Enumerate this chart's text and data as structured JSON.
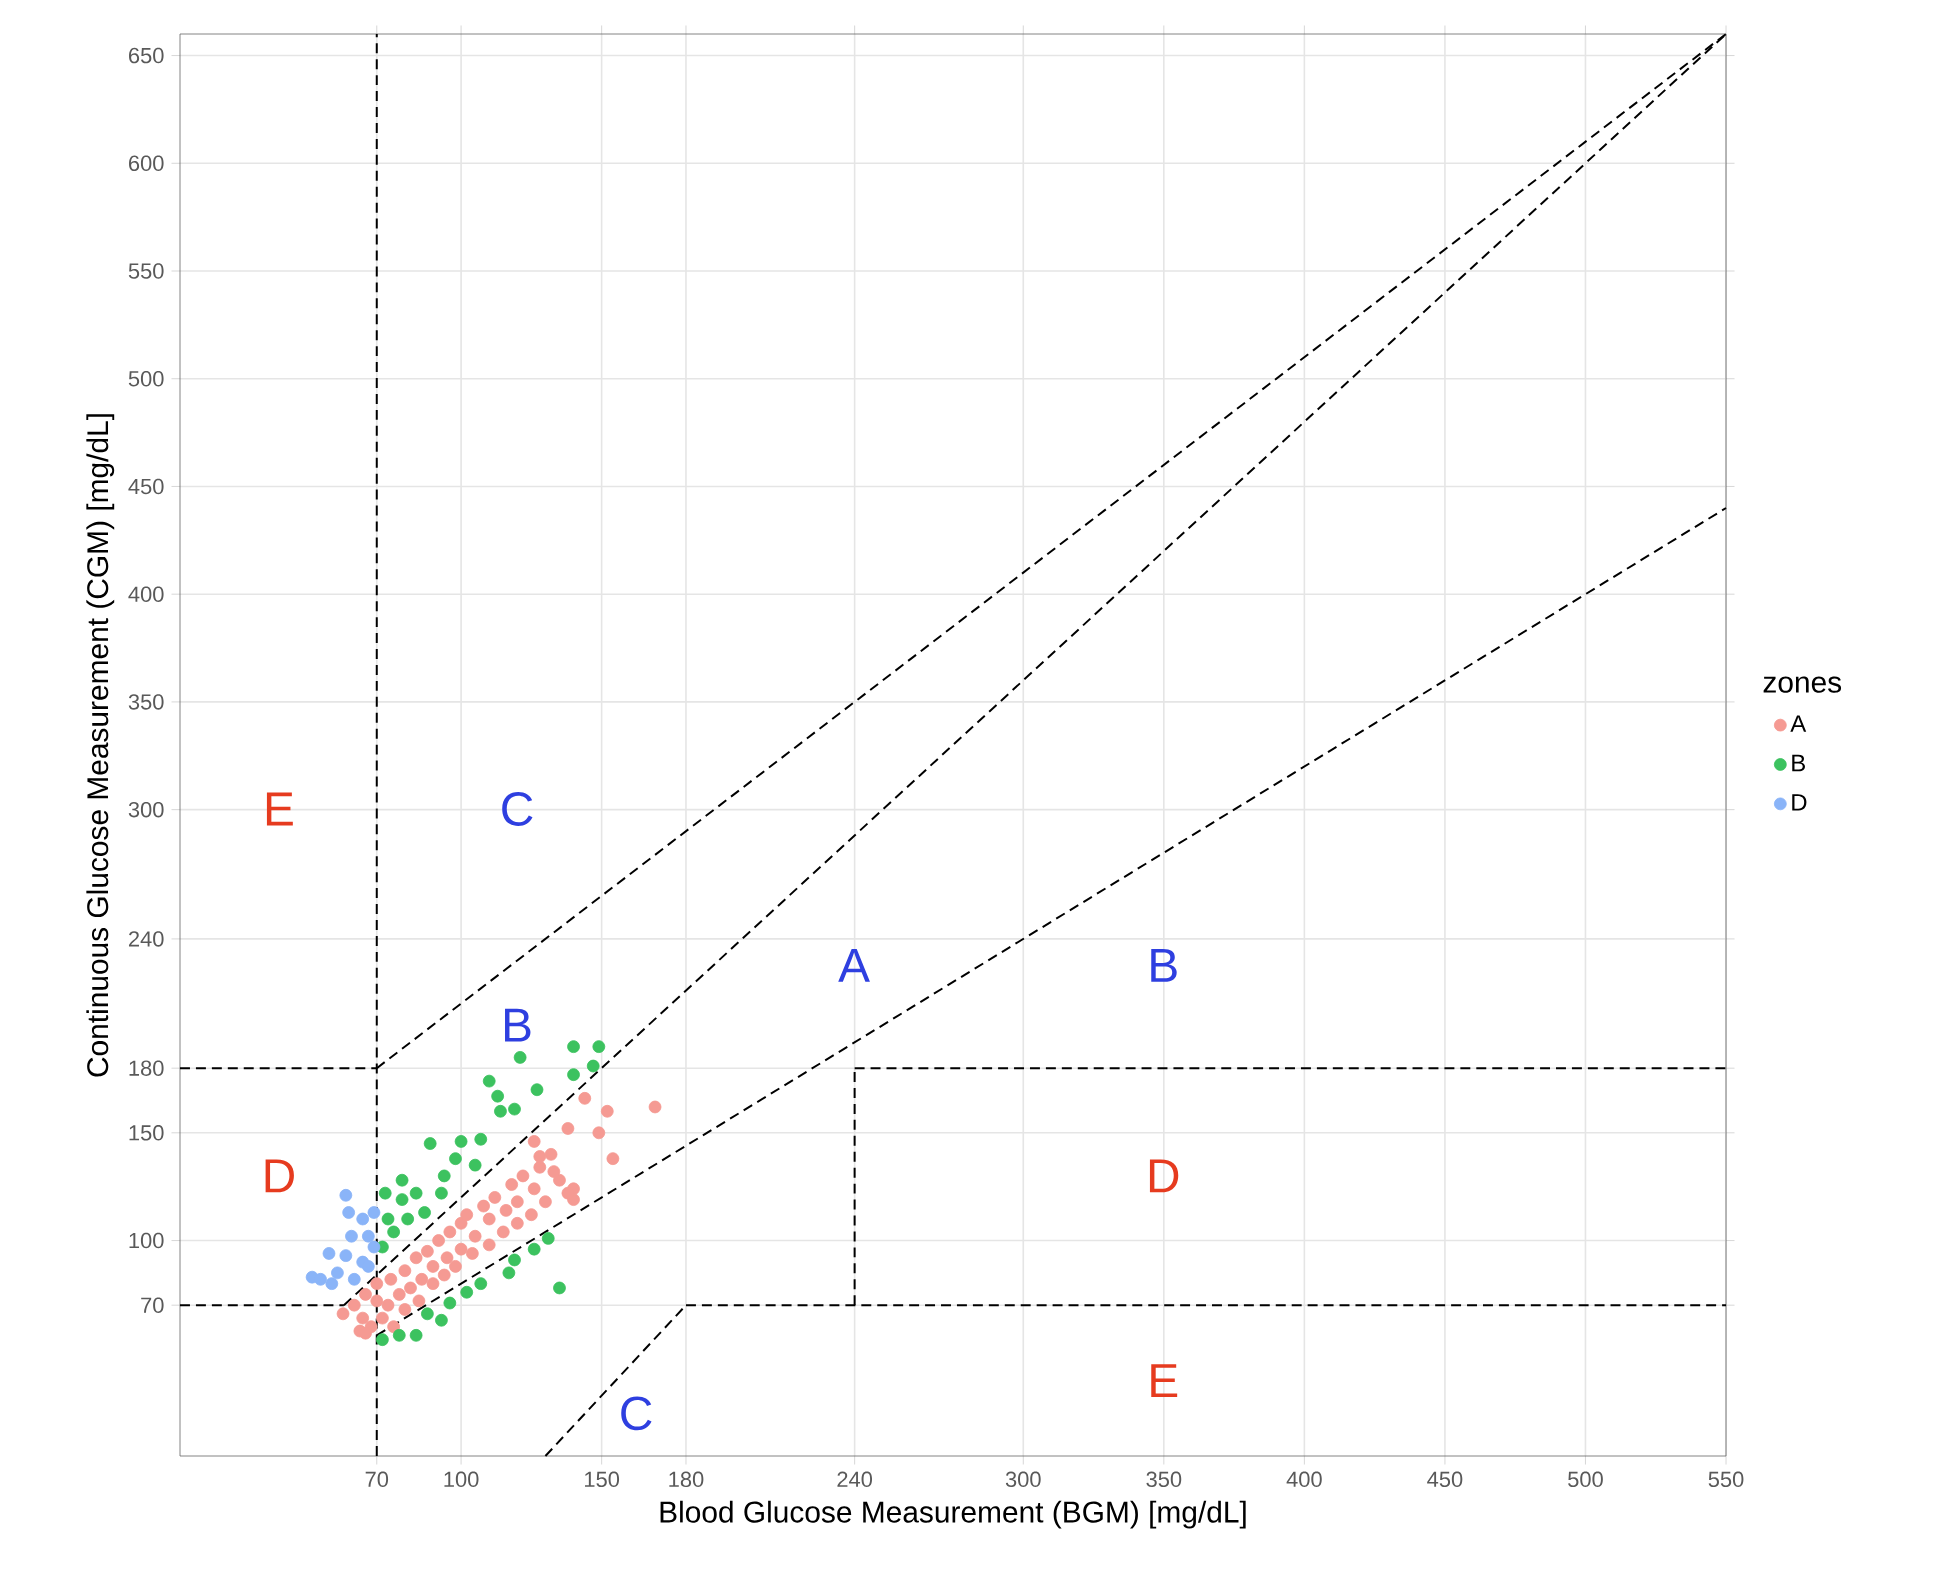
{
  "chart_data": {
    "type": "scatter",
    "xlabel": "Blood Glucose Measurement (BGM) [mg/dL]",
    "ylabel": "Continuous Glucose Measurement (CGM) [mg/dL]",
    "legend_title": "zones",
    "legend": "right",
    "grid": true,
    "xlim": [
      0,
      550
    ],
    "ylim": [
      0,
      660
    ],
    "xticks": [
      70,
      100,
      150,
      180,
      240,
      300,
      350,
      400,
      450,
      500,
      550
    ],
    "yticks": [
      70,
      100,
      150,
      180,
      240,
      300,
      350,
      400,
      450,
      500,
      550,
      600,
      650
    ],
    "annotations": [
      "E",
      "C",
      "B",
      "A",
      "B",
      "D",
      "D",
      "E",
      "C"
    ],
    "series": [
      {
        "name": "A",
        "color": "#f59a93",
        "marker": "circle",
        "x": [
          58,
          62,
          65,
          66,
          68,
          70,
          70,
          72,
          74,
          75,
          76,
          78,
          80,
          80,
          82,
          84,
          85,
          86,
          88,
          90,
          90,
          92,
          94,
          95,
          96,
          98,
          100,
          100,
          102,
          104,
          105,
          108,
          110,
          110,
          112,
          115,
          116,
          118,
          120,
          120,
          122,
          125,
          126,
          128,
          130,
          132,
          135,
          140,
          64,
          66,
          144,
          152,
          169,
          138,
          149,
          154,
          140,
          133,
          126,
          128,
          138
        ],
        "values": [
          66,
          70,
          64,
          75,
          60,
          72,
          80,
          64,
          70,
          82,
          60,
          75,
          86,
          68,
          78,
          92,
          72,
          82,
          95,
          80,
          88,
          100,
          84,
          92,
          104,
          88,
          96,
          108,
          112,
          94,
          102,
          116,
          98,
          110,
          120,
          104,
          114,
          126,
          108,
          118,
          130,
          112,
          124,
          134,
          118,
          140,
          128,
          124,
          58,
          57,
          166,
          160,
          162,
          152,
          150,
          138,
          119,
          132,
          146,
          139,
          122
        ]
      },
      {
        "name": "B",
        "color": "#3cc25f",
        "marker": "circle",
        "x": [
          140,
          149,
          121,
          110,
          127,
          140,
          147,
          113,
          119,
          107,
          89,
          100,
          94,
          84,
          79,
          74,
          76,
          73,
          87,
          81,
          72,
          98,
          105,
          114,
          131,
          126,
          119,
          117,
          107,
          135,
          102,
          96,
          93,
          84,
          78,
          72,
          88,
          79,
          93
        ],
        "values": [
          190,
          190,
          185,
          174,
          170,
          177,
          181,
          167,
          161,
          147,
          145,
          146,
          130,
          122,
          119,
          110,
          104,
          122,
          113,
          110,
          97,
          138,
          135,
          160,
          101,
          96,
          91,
          85,
          80,
          78,
          76,
          71,
          63,
          56,
          56,
          54,
          66,
          128,
          122
        ]
      },
      {
        "name": "D",
        "color": "#8ab4f8",
        "marker": "circle",
        "x": [
          59,
          60,
          65,
          69,
          61,
          67,
          59,
          53,
          65,
          47,
          50,
          56,
          62,
          67,
          69,
          54
        ],
        "values": [
          121,
          113,
          110,
          113,
          102,
          102,
          93,
          94,
          90,
          83,
          82,
          85,
          82,
          88,
          97,
          80
        ]
      },
      {
        "type": "line",
        "color": "#000000",
        "line_style": "dashed",
        "marker": "none",
        "x": [
          58.3,
          550
        ],
        "values": [
          70,
          660
        ]
      },
      {
        "type": "line",
        "color": "#000000",
        "line_style": "dashed",
        "marker": "none",
        "x": [
          70,
          550
        ],
        "values": [
          56,
          440
        ]
      },
      {
        "type": "line",
        "color": "#000000",
        "line_style": "dashed",
        "marker": "none",
        "x": [
          70,
          550
        ],
        "values": [
          180,
          660
        ]
      },
      {
        "type": "line",
        "color": "#000000",
        "line_style": "dashed",
        "marker": "none",
        "x": [
          130,
          180
        ],
        "values": [
          0,
          70
        ]
      },
      {
        "type": "line",
        "color": "#000000",
        "line_style": "dashed",
        "marker": "none",
        "x": [
          180,
          550
        ],
        "values": [
          70,
          70
        ]
      },
      {
        "type": "line",
        "color": "#000000",
        "line_style": "dashed",
        "marker": "none",
        "x": [
          0,
          58.3
        ],
        "values": [
          70,
          70
        ]
      },
      {
        "type": "line",
        "color": "#000000",
        "line_style": "dashed",
        "marker": "none",
        "x": [
          0,
          70
        ],
        "values": [
          180,
          180
        ]
      },
      {
        "type": "line",
        "color": "#000000",
        "line_style": "dashed",
        "marker": "none",
        "x": [
          240,
          550
        ],
        "values": [
          180,
          180
        ]
      },
      {
        "type": "line",
        "color": "#000000",
        "line_style": "dashed",
        "marker": "none",
        "x": [
          240,
          240
        ],
        "values": [
          70,
          180
        ]
      },
      {
        "type": "line",
        "color": "#000000",
        "line_style": "dashed",
        "marker": "none",
        "x": [
          70,
          70
        ],
        "values": [
          0,
          660
        ]
      }
    ]
  }
}
